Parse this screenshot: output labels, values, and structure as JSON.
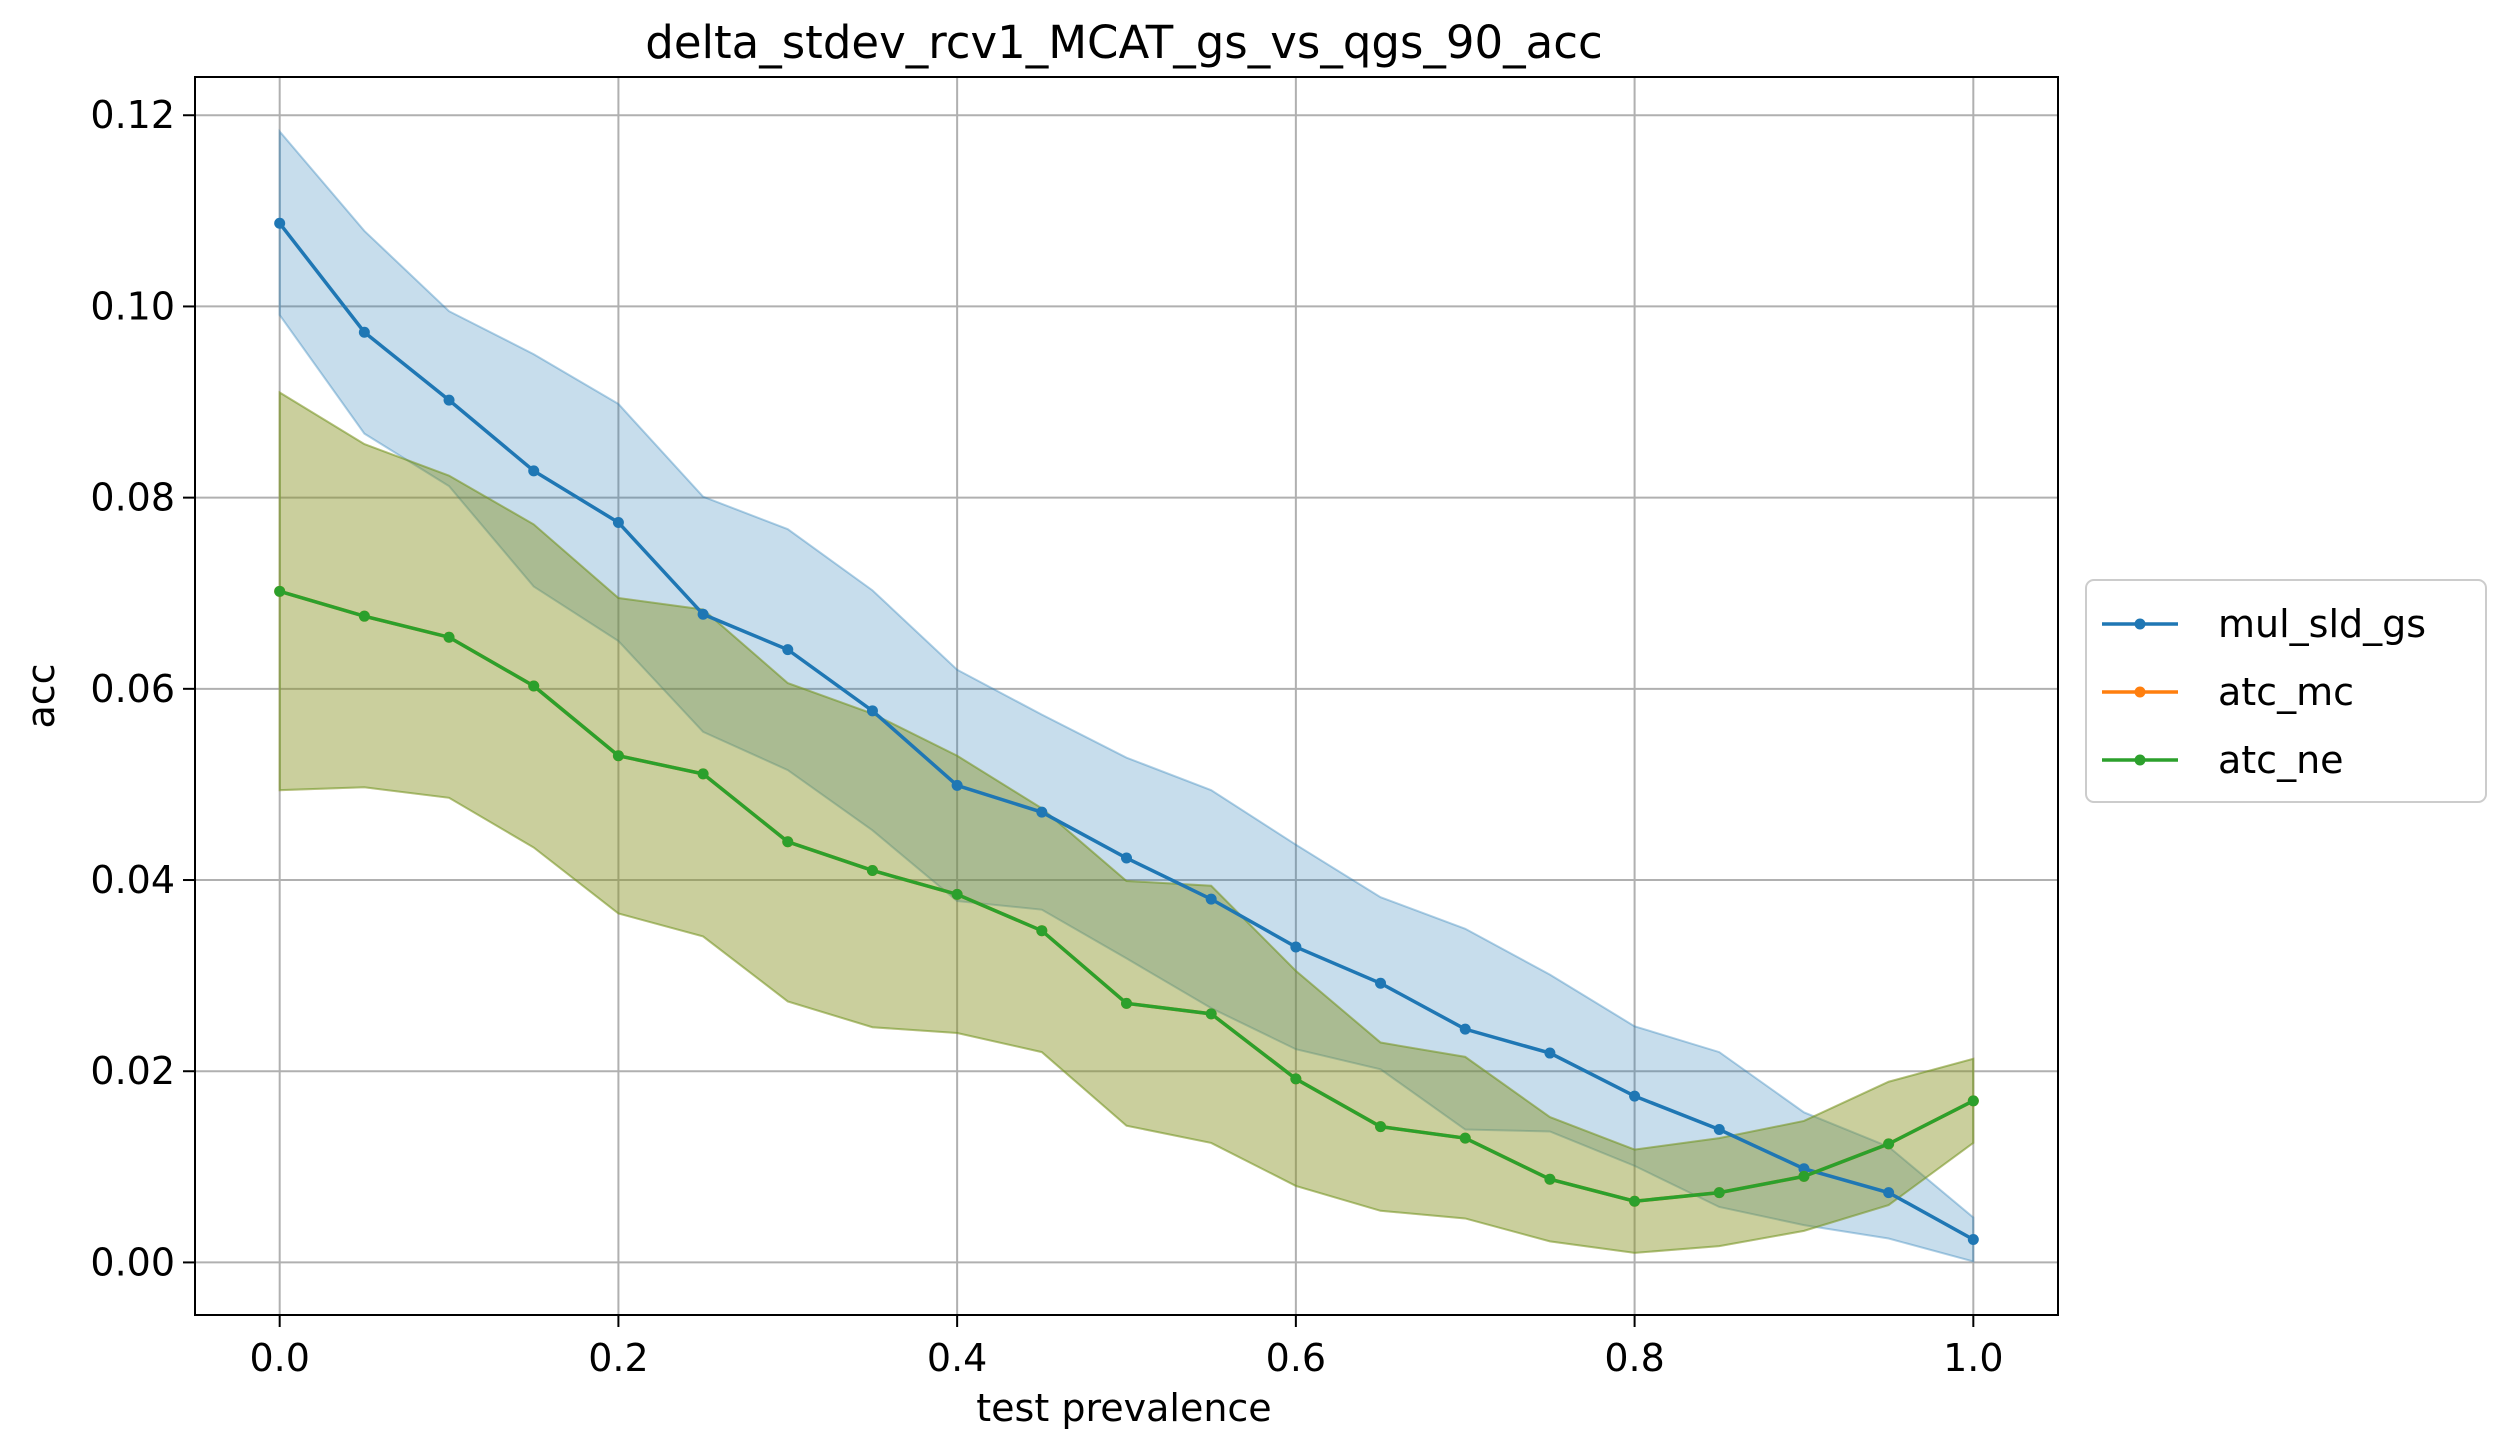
{
  "chart_data": {
    "type": "line",
    "title": "delta_stdev_rcv1_MCAT_gs_vs_qgs_90_acc",
    "xlabel": "test prevalence",
    "ylabel": "acc",
    "xlim": [
      -0.05,
      1.05
    ],
    "ylim": [
      -0.0055,
      0.124
    ],
    "xticks": [
      0.0,
      0.2,
      0.4,
      0.6,
      0.8,
      1.0
    ],
    "xtick_labels": [
      "0.0",
      "0.2",
      "0.4",
      "0.6",
      "0.8",
      "1.0"
    ],
    "yticks": [
      0.0,
      0.02,
      0.04,
      0.06,
      0.08,
      0.1,
      0.12
    ],
    "ytick_labels": [
      "0.00",
      "0.02",
      "0.04",
      "0.06",
      "0.08",
      "0.10",
      "0.12"
    ],
    "grid": true,
    "legend_position": "center-right-outside",
    "x": [
      0.0,
      0.05,
      0.1,
      0.15,
      0.2,
      0.25,
      0.3,
      0.35,
      0.4,
      0.45,
      0.5,
      0.55,
      0.6,
      0.65,
      0.7,
      0.75,
      0.8,
      0.85,
      0.9,
      0.95,
      1.0
    ],
    "series": [
      {
        "name": "mul_sld_gs",
        "color": "#1f77b4",
        "band_color": "#1f77b4",
        "values": [
          0.1087,
          0.0973,
          0.0902,
          0.0828,
          0.0774,
          0.0678,
          0.0641,
          0.0577,
          0.0499,
          0.0471,
          0.0423,
          0.038,
          0.033,
          0.0292,
          0.0244,
          0.0219,
          0.0174,
          0.0139,
          0.0098,
          0.0073,
          0.0024
        ],
        "upper": [
          0.1183,
          0.1079,
          0.0995,
          0.095,
          0.0898,
          0.0801,
          0.0767,
          0.0703,
          0.062,
          0.0573,
          0.0528,
          0.0494,
          0.0437,
          0.0382,
          0.0349,
          0.0301,
          0.0247,
          0.022,
          0.0157,
          0.0121,
          0.0047
        ],
        "lower": [
          0.0991,
          0.0867,
          0.0812,
          0.0707,
          0.065,
          0.0555,
          0.0515,
          0.0452,
          0.0378,
          0.0369,
          0.0318,
          0.0266,
          0.0223,
          0.0202,
          0.0139,
          0.0137,
          0.0101,
          0.0058,
          0.0039,
          0.0025,
          0.0001
        ]
      },
      {
        "name": "atc_mc",
        "color": "#ff7f0e",
        "band_color": "#ff7f0e",
        "values": [
          0.0702,
          0.0676,
          0.0654,
          0.0603,
          0.053,
          0.0511,
          0.044,
          0.041,
          0.0385,
          0.0347,
          0.0271,
          0.026,
          0.0192,
          0.0142,
          0.013,
          0.0087,
          0.0064,
          0.0073,
          0.009,
          0.0124,
          0.0169
        ],
        "upper": [
          0.091,
          0.0856,
          0.0823,
          0.0772,
          0.0695,
          0.0683,
          0.0606,
          0.0574,
          0.053,
          0.0475,
          0.0399,
          0.0394,
          0.0305,
          0.023,
          0.0215,
          0.0152,
          0.0118,
          0.013,
          0.0148,
          0.0189,
          0.0213
        ],
        "lower": [
          0.0494,
          0.0497,
          0.0486,
          0.0434,
          0.0365,
          0.0341,
          0.0273,
          0.0246,
          0.024,
          0.022,
          0.0143,
          0.0125,
          0.008,
          0.0054,
          0.0046,
          0.0022,
          0.001,
          0.0017,
          0.0033,
          0.006,
          0.0125
        ]
      },
      {
        "name": "atc_ne",
        "color": "#2ca02c",
        "band_color": "#2ca02c",
        "values": [
          0.0702,
          0.0676,
          0.0654,
          0.0603,
          0.053,
          0.0511,
          0.044,
          0.041,
          0.0385,
          0.0347,
          0.0271,
          0.026,
          0.0192,
          0.0142,
          0.013,
          0.0087,
          0.0064,
          0.0073,
          0.009,
          0.0124,
          0.0169
        ],
        "upper": [
          0.091,
          0.0856,
          0.0823,
          0.0772,
          0.0695,
          0.0683,
          0.0606,
          0.0574,
          0.053,
          0.0475,
          0.0399,
          0.0394,
          0.0305,
          0.023,
          0.0215,
          0.0152,
          0.0118,
          0.013,
          0.0148,
          0.0189,
          0.0213
        ],
        "lower": [
          0.0494,
          0.0497,
          0.0486,
          0.0434,
          0.0365,
          0.0341,
          0.0273,
          0.0246,
          0.024,
          0.022,
          0.0143,
          0.0125,
          0.008,
          0.0054,
          0.0046,
          0.0022,
          0.001,
          0.0017,
          0.0033,
          0.006,
          0.0125
        ]
      }
    ]
  }
}
